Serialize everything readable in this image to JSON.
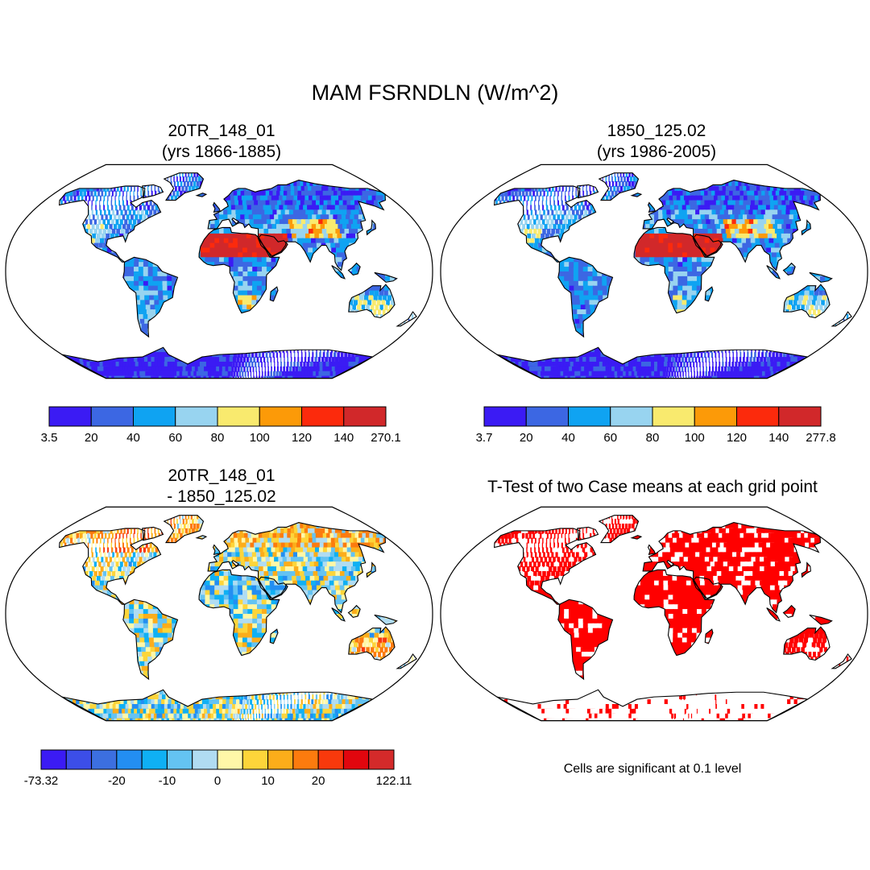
{
  "title": "MAM FSRNDLN (W/m^2)",
  "panels": [
    {
      "line1": "20TR_148_01",
      "line2": "(yrs 1866-1885)"
    },
    {
      "line1": "1850_125.02",
      "line2": "(yrs 1986-2005)"
    },
    {
      "line1": "20TR_148_01",
      "line2": "- 1850_125.02"
    },
    {
      "line1": "T-Test of two Case means at each grid point"
    }
  ],
  "colorbars": {
    "abs_colors": [
      "#3b1bf4",
      "#3c67e3",
      "#0fa3f2",
      "#98d4f0",
      "#f9ea6e",
      "#fc9a08",
      "#fc2a0c",
      "#d1282a"
    ],
    "diff_colors": [
      "#3b1bf4",
      "#3c4ee8",
      "#3c6fe0",
      "#238ef2",
      "#0fb0f4",
      "#64c3f2",
      "#b0dcf2",
      "#fff7a8",
      "#fdd53a",
      "#fcad1a",
      "#fc7b0e",
      "#f8390c",
      "#e1060e",
      "#d42a2a"
    ],
    "left": {
      "labels": [
        "3.5",
        "20",
        "40",
        "60",
        "80",
        "100",
        "120",
        "140",
        "270.1"
      ]
    },
    "right": {
      "labels": [
        "3.7",
        "20",
        "40",
        "60",
        "80",
        "100",
        "120",
        "140",
        "277.8"
      ]
    },
    "diff": {
      "labels": [
        "-73.32",
        "-20",
        "-10",
        "0",
        "10",
        "20",
        "122.11"
      ]
    }
  },
  "significance_note": "Cells are significant at 0.1 level",
  "significance_color": "#ff0000"
}
